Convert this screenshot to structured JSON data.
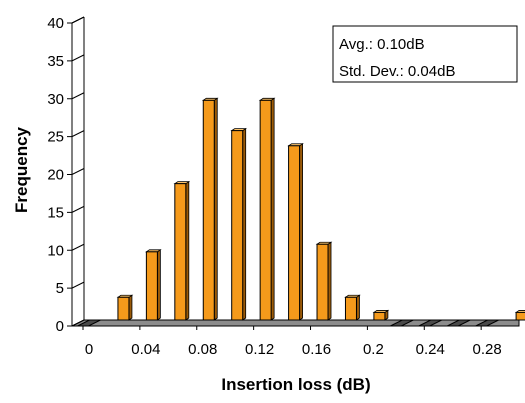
{
  "chart_data": {
    "type": "bar",
    "xlabel": "Insertion loss (dB)",
    "ylabel": "Frequency",
    "x": [
      0,
      0.02,
      0.04,
      0.06,
      0.08,
      0.1,
      0.12,
      0.14,
      0.16,
      0.18,
      0.2,
      0.22,
      0.24,
      0.26,
      0.28,
      0.3
    ],
    "values": [
      0,
      3,
      9,
      18,
      29,
      25,
      29,
      23,
      10,
      3,
      1,
      0,
      0,
      0,
      0,
      1
    ],
    "x_tick_labels": [
      "0",
      "0.04",
      "0.08",
      "0.12",
      "0.16",
      "0.2",
      "0.24",
      "0.28"
    ],
    "y_tick_labels": [
      "0",
      "5",
      "10",
      "15",
      "20",
      "25",
      "30",
      "35",
      "40"
    ],
    "ylim": [
      0,
      40
    ],
    "xlim": [
      -0.01,
      0.3
    ],
    "grid": false,
    "bar_color": "#f59a1b",
    "bar_side_color": "#9a5a08",
    "stats": {
      "avg": "Avg.: 0.10dB",
      "std": "Std. Dev.: 0.04dB"
    }
  }
}
